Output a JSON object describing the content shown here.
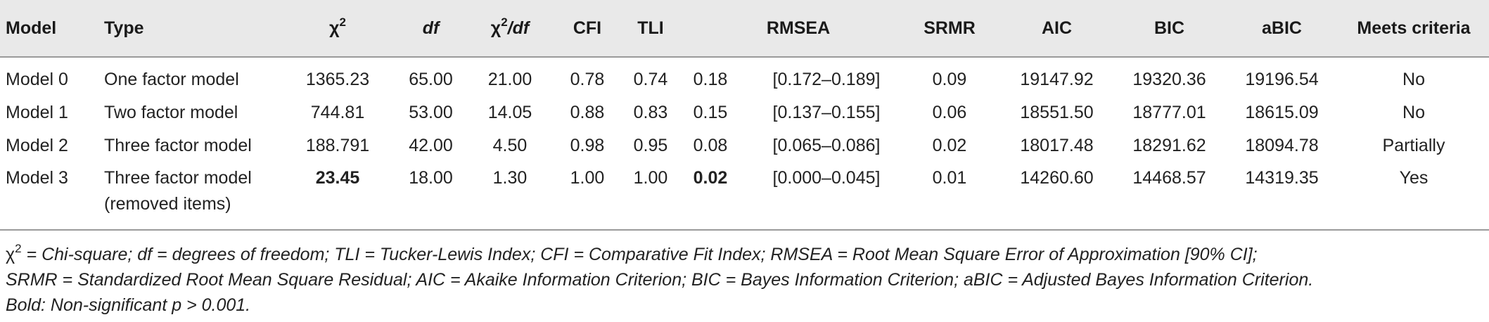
{
  "table": {
    "headers": {
      "model": "Model",
      "type": "Type",
      "chi2": "χ",
      "chi2_sup": "2",
      "df": "df",
      "chi2df_pre": "χ",
      "chi2df_sup": "2",
      "chi2df_post": "/df",
      "cfi": "CFI",
      "tli": "TLI",
      "rmsea": "RMSEA",
      "srmr": "SRMR",
      "aic": "AIC",
      "bic": "BIC",
      "abic": "aBIC",
      "meets": "Meets criteria"
    },
    "rows": [
      {
        "model": "Model 0",
        "type": "One factor model",
        "type2": "",
        "chi2": "1365.23",
        "df": "65.00",
        "chi2df": "21.00",
        "cfi": "0.78",
        "tli": "0.74",
        "rmsea": "0.18",
        "rmsea_ci": "[0.172–0.189]",
        "srmr": "0.09",
        "aic": "19147.92",
        "bic": "19320.36",
        "abic": "19196.54",
        "meets": "No"
      },
      {
        "model": "Model 1",
        "type": "Two factor model",
        "type2": "",
        "chi2": "744.81",
        "df": "53.00",
        "chi2df": "14.05",
        "cfi": "0.88",
        "tli": "0.83",
        "rmsea": "0.15",
        "rmsea_ci": "[0.137–0.155]",
        "srmr": "0.06",
        "aic": "18551.50",
        "bic": "18777.01",
        "abic": "18615.09",
        "meets": "No"
      },
      {
        "model": "Model 2",
        "type": "Three factor model",
        "type2": "",
        "chi2": "188.791",
        "df": "42.00",
        "chi2df": "4.50",
        "cfi": "0.98",
        "tli": "0.95",
        "rmsea": "0.08",
        "rmsea_ci": "[0.065–0.086]",
        "srmr": "0.02",
        "aic": "18017.48",
        "bic": "18291.62",
        "abic": "18094.78",
        "meets": "Partially"
      },
      {
        "model": "Model 3",
        "type": "Three factor model",
        "type2": "(removed items)",
        "chi2": "23.45",
        "df": "18.00",
        "chi2df": "1.30",
        "cfi": "1.00",
        "tli": "1.00",
        "rmsea": "0.02",
        "rmsea_ci": "[0.000–0.045]",
        "srmr": "0.01",
        "aic": "14260.60",
        "bic": "14468.57",
        "abic": "14319.35",
        "meets": "Yes"
      }
    ]
  },
  "footnote": {
    "chi": "χ",
    "chi_sup": "2",
    "line1_rest": " = Chi-square; df = degrees of freedom; TLI = Tucker-Lewis Index; CFI = Comparative Fit Index; RMSEA = Root Mean Square Error of Approximation [90% CI];",
    "line2": "SRMR = Standardized Root Mean Square Residual; AIC = Akaike Information Criterion; BIC = Bayes Information Criterion; aBIC = Adjusted Bayes Information Criterion.",
    "line3": "Bold: Non-significant p > 0.001."
  }
}
